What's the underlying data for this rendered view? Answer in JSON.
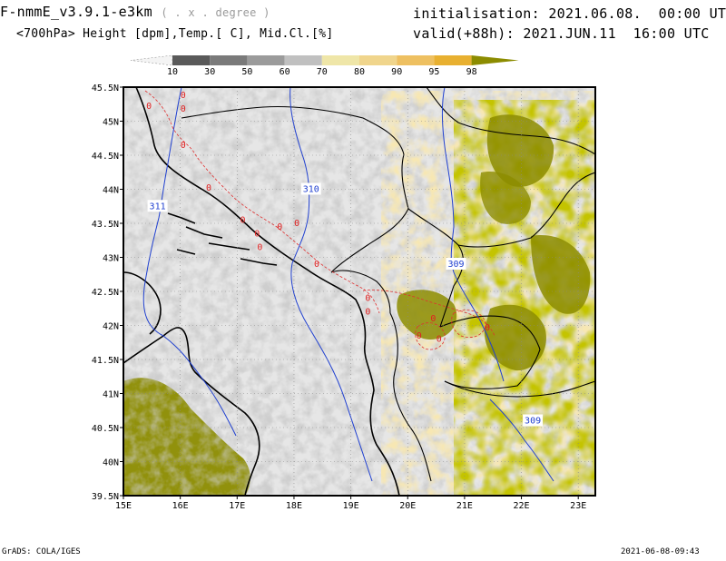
{
  "header": {
    "model": "F-nmmE_v3.9.1-e3km",
    "unit_note": "( . x . degree )",
    "field": "<700hPa> Height [dpm],Temp.[ C], Mid.Cl.[%]",
    "init_label": "initialisation:",
    "init_value": "2021.06.08.  00:00 UTC",
    "valid_label": "valid(+88h):",
    "valid_value": "2021.JUN.11  16:00 UTC"
  },
  "colorbar": {
    "labels": [
      "10",
      "30",
      "50",
      "60",
      "70",
      "80",
      "90",
      "95",
      "98"
    ],
    "colors": [
      "#f4f4f4",
      "#5a5a5a",
      "#7a7a7a",
      "#9b9b9b",
      "#c0c0c0",
      "#efe6a8",
      "#f0d58c",
      "#eec061",
      "#e8b030",
      "#8c8c00"
    ]
  },
  "map": {
    "background": "#e6e6e6",
    "land_cloud_colors": [
      "#a8a8a8",
      "#c8c8c8",
      "#efe6a8",
      "#e8c46a",
      "#8c8c00"
    ],
    "lon_labels": [
      "15E",
      "16E",
      "17E",
      "18E",
      "19E",
      "20E",
      "21E",
      "22E",
      "23E"
    ],
    "lat_labels": [
      "45.5N",
      "45N",
      "44.5N",
      "44N",
      "43.5N",
      "43N",
      "42.5N",
      "42N",
      "41.5N",
      "41N",
      "40.5N",
      "40N",
      "39.5N"
    ],
    "lon_range": [
      15,
      23.3
    ],
    "lat_range": [
      39.5,
      45.5
    ],
    "height_contours": [
      {
        "value": "311",
        "lon": 15.6,
        "lat": 43.75
      },
      {
        "value": "310",
        "lon": 18.3,
        "lat": 44.0
      },
      {
        "value": "309",
        "lon": 20.85,
        "lat": 42.9
      },
      {
        "value": "309",
        "lon": 22.2,
        "lat": 40.6
      }
    ],
    "temp_labels": [
      {
        "value": "0",
        "lon": 16.05,
        "lat": 45.38
      },
      {
        "value": "0",
        "lon": 16.05,
        "lat": 45.18
      },
      {
        "value": "0",
        "lon": 15.45,
        "lat": 45.22
      },
      {
        "value": "0",
        "lon": 16.05,
        "lat": 44.65
      },
      {
        "value": "0",
        "lon": 16.5,
        "lat": 44.02
      },
      {
        "value": "0",
        "lon": 17.1,
        "lat": 43.55
      },
      {
        "value": "0",
        "lon": 17.35,
        "lat": 43.35
      },
      {
        "value": "0",
        "lon": 17.75,
        "lat": 43.45
      },
      {
        "value": "0",
        "lon": 18.05,
        "lat": 43.5
      },
      {
        "value": "0",
        "lon": 17.4,
        "lat": 43.15
      },
      {
        "value": "0",
        "lon": 18.4,
        "lat": 42.9
      },
      {
        "value": "0",
        "lon": 19.3,
        "lat": 42.4
      },
      {
        "value": "0",
        "lon": 19.3,
        "lat": 42.2
      },
      {
        "value": "0",
        "lon": 20.45,
        "lat": 42.1
      },
      {
        "value": "0",
        "lon": 21.4,
        "lat": 41.97
      },
      {
        "value": "0",
        "lon": 20.2,
        "lat": 41.85
      },
      {
        "value": "0",
        "lon": 20.55,
        "lat": 41.8
      }
    ]
  },
  "footer": {
    "left": "GrADS: COLA/IGES",
    "right": "2021-06-08-09:43"
  }
}
